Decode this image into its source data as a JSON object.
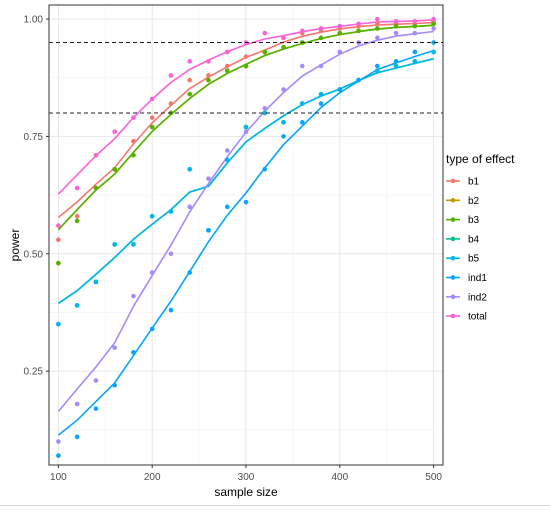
{
  "chart_data": {
    "type": "scatter",
    "xlabel": "sample size",
    "ylabel": "power",
    "xlim": [
      90,
      510
    ],
    "ylim": [
      0.05,
      1.03
    ],
    "x_ticks": [
      100,
      200,
      300,
      400,
      500
    ],
    "y_ticks": [
      0.25,
      0.5,
      0.75,
      1.0
    ],
    "y_tick_labels": [
      "0.25",
      "0.50",
      "0.75",
      "1.00"
    ],
    "reference_lines": [
      0.95,
      0.8
    ],
    "grid": true,
    "legend_title": "type of effect",
    "legend_position": "right",
    "smooth_fit_lines": true,
    "x": [
      100,
      120,
      140,
      160,
      180,
      200,
      220,
      240,
      260,
      280,
      300,
      320,
      340,
      360,
      380,
      400,
      420,
      440,
      460,
      480,
      500
    ],
    "series": [
      {
        "name": "b1",
        "color": "#F8766D",
        "values": [
          0.53,
          0.58,
          0.64,
          0.68,
          0.74,
          0.79,
          0.82,
          0.87,
          0.88,
          0.9,
          0.92,
          0.93,
          0.96,
          0.97,
          0.975,
          0.98,
          0.985,
          0.99,
          0.99,
          0.99,
          0.995
        ]
      },
      {
        "name": "b2",
        "color": "#C49A00",
        "values": [
          0.48,
          0.57,
          0.64,
          0.68,
          0.71,
          0.77,
          0.8,
          0.84,
          0.87,
          0.89,
          0.9,
          0.93,
          0.94,
          0.95,
          0.96,
          0.97,
          0.975,
          0.98,
          0.985,
          0.985,
          0.99
        ]
      },
      {
        "name": "b3",
        "color": "#53B400",
        "values": [
          0.48,
          0.57,
          0.64,
          0.68,
          0.71,
          0.77,
          0.8,
          0.84,
          0.87,
          0.89,
          0.9,
          0.93,
          0.94,
          0.95,
          0.96,
          0.97,
          0.975,
          0.98,
          0.985,
          0.985,
          0.99
        ]
      },
      {
        "name": "b4",
        "color": "#00C094",
        "values": [
          0.35,
          0.39,
          0.44,
          0.52,
          0.52,
          0.58,
          0.59,
          0.68,
          0.55,
          0.7,
          0.77,
          0.8,
          0.78,
          0.82,
          0.84,
          0.85,
          0.87,
          0.89,
          0.9,
          0.91,
          0.93
        ]
      },
      {
        "name": "b5",
        "color": "#00B6EB",
        "values": [
          0.35,
          0.39,
          0.44,
          0.52,
          0.52,
          0.58,
          0.59,
          0.68,
          0.55,
          0.7,
          0.77,
          0.8,
          0.78,
          0.82,
          0.84,
          0.85,
          0.87,
          0.89,
          0.9,
          0.91,
          0.93
        ]
      },
      {
        "name": "ind1",
        "color": "#06A4FF",
        "values": [
          0.07,
          0.11,
          0.17,
          0.22,
          0.29,
          0.34,
          0.38,
          0.46,
          0.55,
          0.6,
          0.61,
          0.68,
          0.75,
          0.78,
          0.82,
          0.85,
          0.87,
          0.9,
          0.91,
          0.93,
          0.95
        ]
      },
      {
        "name": "ind2",
        "color": "#A58AFF",
        "values": [
          0.1,
          0.18,
          0.23,
          0.3,
          0.41,
          0.46,
          0.5,
          0.6,
          0.66,
          0.72,
          0.76,
          0.81,
          0.85,
          0.9,
          0.9,
          0.93,
          0.95,
          0.96,
          0.97,
          0.97,
          0.98
        ]
      },
      {
        "name": "total",
        "color": "#FB61D7",
        "values": [
          0.56,
          0.64,
          0.71,
          0.76,
          0.79,
          0.83,
          0.88,
          0.91,
          0.91,
          0.93,
          0.95,
          0.97,
          0.96,
          0.975,
          0.98,
          0.985,
          0.99,
          1.0,
          0.995,
          0.995,
          1.0
        ]
      }
    ]
  }
}
